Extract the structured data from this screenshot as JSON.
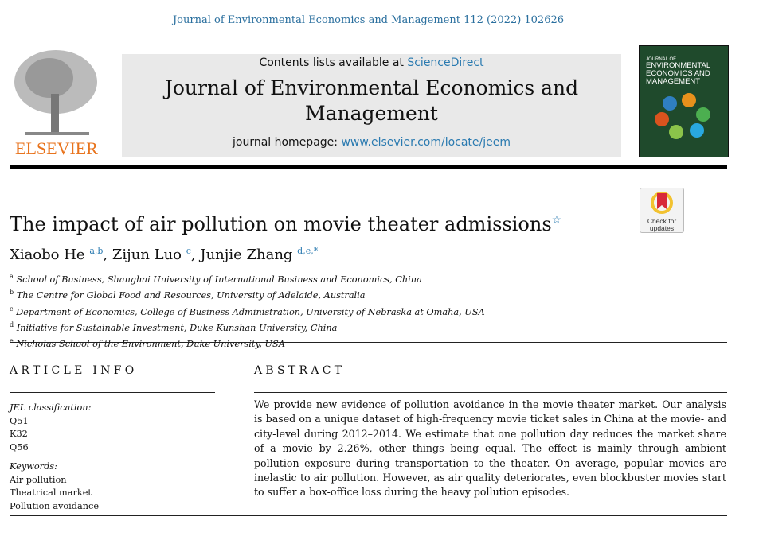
{
  "running_header": "Journal of Environmental Economics and Management 112 (2022) 102626",
  "masthead": {
    "contents_prefix": "Contents lists available at ",
    "contents_link": "ScienceDirect",
    "journal_title": "Journal of Environmental Economics and Management",
    "homepage_prefix": "journal homepage: ",
    "homepage_link": "www.elsevier.com/locate/jeem",
    "publisher": "ELSEVIER",
    "cover_line1": "JOURNAL OF",
    "cover_line2": "ENVIRONMENTAL ECONOMICS AND MANAGEMENT",
    "check_updates": "Check for updates"
  },
  "article": {
    "title": "The impact of air pollution on movie theater admissions",
    "title_mark": "☆",
    "authors": [
      {
        "name": "Xiaobo He",
        "sup": "a,b"
      },
      {
        "name": "Zijun Luo",
        "sup": "c"
      },
      {
        "name": "Junjie Zhang",
        "sup": "d,e,*"
      }
    ],
    "affiliations": [
      {
        "key": "a",
        "text": "School of Business, Shanghai University of International Business and Economics, China"
      },
      {
        "key": "b",
        "text": "The Centre for Global Food and Resources, University of Adelaide, Australia"
      },
      {
        "key": "c",
        "text": "Department of Economics, College of Business Administration, University of Nebraska at Omaha, USA"
      },
      {
        "key": "d",
        "text": "Initiative for Sustainable Investment, Duke Kunshan University, China"
      },
      {
        "key": "e",
        "text": "Nicholas School of the Environment, Duke University, USA"
      }
    ]
  },
  "article_info": {
    "heading": "ARTICLE INFO",
    "jel_label": "JEL classification:",
    "jel": [
      "Q51",
      "K32",
      "Q56"
    ],
    "keywords_label": "Keywords:",
    "keywords": [
      "Air pollution",
      "Theatrical market",
      "Pollution avoidance"
    ]
  },
  "abstract": {
    "heading": "ABSTRACT",
    "text": "We provide new evidence of pollution avoidance in the movie theater market. Our analysis is based on a unique dataset of high-frequency movie ticket sales in China at the movie- and city-level during 2012–2014. We estimate that one pollution day reduces the market share of a movie by 2.26%, other things being equal. The effect is mainly through ambient pollution exposure during transportation to the theater. On average, popular movies are inelastic to air pollution. However, as air quality deteriorates, even blockbuster movies start to suffer a box-office loss during the heavy pollution episodes."
  }
}
